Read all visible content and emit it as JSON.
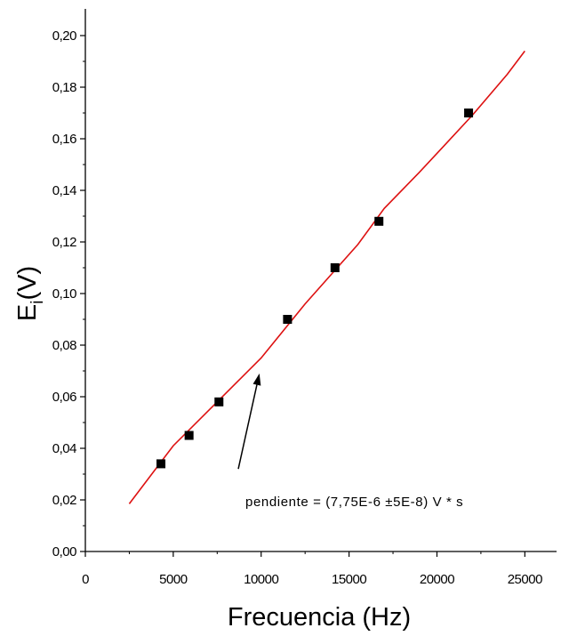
{
  "chart_data": {
    "type": "scatter",
    "title": "",
    "xlabel": "Frecuencia (Hz)",
    "ylabel_main": "E",
    "ylabel_sub": "i",
    "ylabel_rest": "(V)",
    "xlim": [
      0,
      27000
    ],
    "ylim": [
      0.0,
      0.21
    ],
    "xticks": [
      0,
      5000,
      10000,
      15000,
      20000,
      25000
    ],
    "xtick_labels": [
      "0",
      "5000",
      "10000",
      "15000",
      "20000",
      "25000"
    ],
    "yticks": [
      0.0,
      0.02,
      0.04,
      0.06,
      0.08,
      0.1,
      0.12,
      0.14,
      0.16,
      0.18,
      0.2
    ],
    "ytick_labels": [
      "0,00",
      "0,02",
      "0,04",
      "0,06",
      "0,08",
      "0,10",
      "0,12",
      "0,14",
      "0,16",
      "0,18",
      "0,20"
    ],
    "grid": false,
    "series": [
      {
        "kind": "points",
        "color": "#000000",
        "marker": "square",
        "x": [
          4300,
          5900,
          7600,
          11500,
          14200,
          16700,
          21800
        ],
        "y": [
          0.034,
          0.045,
          0.058,
          0.09,
          0.11,
          0.128,
          0.17
        ]
      },
      {
        "kind": "fit-line",
        "color": "#dd1111",
        "x": [
          2500,
          5000,
          7500,
          10000,
          12500,
          15500,
          17000,
          19000,
          20500,
          22000,
          24000,
          25000
        ],
        "y": [
          0.0185,
          0.041,
          0.058,
          0.075,
          0.096,
          0.119,
          0.133,
          0.147,
          0.158,
          0.169,
          0.185,
          0.194
        ]
      }
    ],
    "annotation": {
      "text": "pendiente = (7,75E-6 ±5E-8) V * s",
      "arrow_from": [
        8700,
        0.032
      ],
      "arrow_to": [
        9900,
        0.069
      ]
    }
  }
}
